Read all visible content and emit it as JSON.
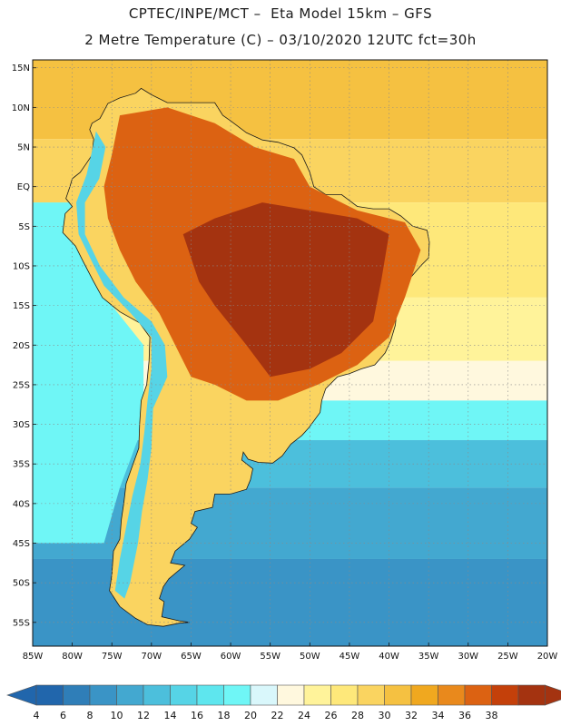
{
  "header": {
    "title_line1": "CPTEC/INPE/MCT –  Eta Model 15km – GFS",
    "title_line2": "2 Metre Temperature (C) – 03/10/2020 12UTC fct=30h"
  },
  "map": {
    "region": "South America",
    "lon_range": [
      -85,
      -20
    ],
    "lat_range": [
      -58,
      16
    ],
    "lat_labels": [
      "15N",
      "10N",
      "5N",
      "EQ",
      "5S",
      "10S",
      "15S",
      "20S",
      "25S",
      "30S",
      "35S",
      "40S",
      "45S",
      "50S",
      "55S"
    ],
    "lat_values": [
      15,
      10,
      5,
      0,
      -5,
      -10,
      -15,
      -20,
      -25,
      -30,
      -35,
      -40,
      -45,
      -50,
      -55
    ],
    "lon_labels": [
      "85W",
      "80W",
      "75W",
      "70W",
      "65W",
      "60W",
      "55W",
      "50W",
      "45W",
      "40W",
      "35W",
      "30W",
      "25W",
      "20W"
    ],
    "lon_values": [
      -85,
      -80,
      -75,
      -70,
      -65,
      -60,
      -55,
      -50,
      -45,
      -40,
      -35,
      -30,
      -25,
      -20
    ],
    "ocean_bands": [
      {
        "lat_top": 16,
        "lat_bottom": 6,
        "temp_c": 28
      },
      {
        "lat_top": 6,
        "lat_bottom": -2,
        "temp_c": 26
      },
      {
        "lat_top": -2,
        "lat_bottom": -14,
        "temp_c": 24
      },
      {
        "lat_top": -14,
        "lat_bottom": -22,
        "temp_c": 22
      },
      {
        "lat_top": -22,
        "lat_bottom": -27,
        "temp_c": 20
      },
      {
        "lat_top": -27,
        "lat_bottom": -32,
        "temp_c": 16
      },
      {
        "lat_top": -32,
        "lat_bottom": -38,
        "temp_c": 10
      },
      {
        "lat_top": -38,
        "lat_bottom": -47,
        "temp_c": 8
      },
      {
        "lat_top": -47,
        "lat_bottom": -58,
        "temp_c": 6
      }
    ],
    "pacific_cold_tongue_temp_c": 16,
    "hot_core_temp_c": 38,
    "warm_interior_temp_c": 34,
    "andes_temp_c": 12
  },
  "colorbar": {
    "labels": [
      "4",
      "6",
      "8",
      "10",
      "12",
      "14",
      "16",
      "18",
      "20",
      "22",
      "24",
      "26",
      "28",
      "30",
      "32",
      "34",
      "36",
      "38"
    ],
    "colors": [
      "#2166ac",
      "#2f7eb8",
      "#3a94c6",
      "#43a8d0",
      "#4cbfdc",
      "#56d4e6",
      "#5ee6ee",
      "#6ff6f6",
      "#d9f7fb",
      "#fff8de",
      "#fff39a",
      "#fee87a",
      "#fad460",
      "#f5c141",
      "#f0a81f",
      "#e9891c",
      "#dc6212",
      "#c4400a",
      "#a43310"
    ],
    "left_arrow_color": "#2166ac",
    "right_arrow_color": "#a43310"
  }
}
